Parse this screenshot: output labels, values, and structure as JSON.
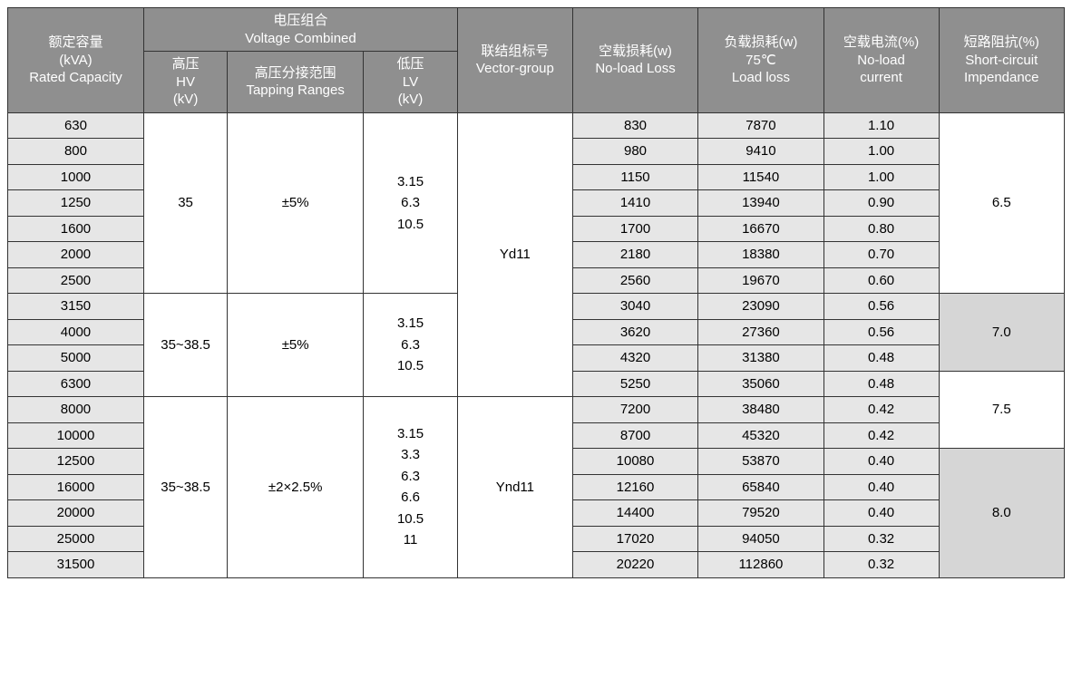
{
  "headers": {
    "rated_capacity_zh": "额定容量",
    "rated_capacity_unit": "(kVA)",
    "rated_capacity_en": "Rated Capacity",
    "voltage_combined_zh": "电压组合",
    "voltage_combined_en": "Voltage Combined",
    "hv_zh": "高压",
    "hv_en": "HV",
    "hv_unit": "(kV)",
    "tapping_zh": "高压分接范围",
    "tapping_en": "Tapping Ranges",
    "lv_zh": "低压",
    "lv_en": "LV",
    "lv_unit": "(kV)",
    "vector_zh": "联结组标号",
    "vector_en": "Vector-group",
    "noload_loss_zh": "空载损耗(w)",
    "noload_loss_en": "No-load Loss",
    "load_loss_zh": "负载损耗(w)",
    "load_loss_temp": "75℃",
    "load_loss_en": "Load loss",
    "noload_current_zh": "空载电流(%)",
    "noload_current_en1": "No-load",
    "noload_current_en2": "current",
    "sc_imp_zh": "短路阻抗(%)",
    "sc_imp_en1": "Short-circuit",
    "sc_imp_en2": "Impendance"
  },
  "group1": {
    "hv": "35",
    "tapping": "±5%",
    "lv": [
      "3.15",
      "6.3",
      "10.5"
    ],
    "vector": "Yd11",
    "impedance": "6.5",
    "rows": [
      {
        "cap": "630",
        "nll": "830",
        "ll": "7870",
        "nlc": "1.10"
      },
      {
        "cap": "800",
        "nll": "980",
        "ll": "9410",
        "nlc": "1.00"
      },
      {
        "cap": "1000",
        "nll": "1150",
        "ll": "11540",
        "nlc": "1.00"
      },
      {
        "cap": "1250",
        "nll": "1410",
        "ll": "13940",
        "nlc": "0.90"
      },
      {
        "cap": "1600",
        "nll": "1700",
        "ll": "16670",
        "nlc": "0.80"
      },
      {
        "cap": "2000",
        "nll": "2180",
        "ll": "18380",
        "nlc": "0.70"
      },
      {
        "cap": "2500",
        "nll": "2560",
        "ll": "19670",
        "nlc": "0.60"
      }
    ]
  },
  "group2": {
    "hv": "35~38.5",
    "tapping": "±5%",
    "lv": [
      "3.15",
      "6.3",
      "10.5"
    ],
    "impedance1": "7.0",
    "impedance2": "7.5",
    "rows": [
      {
        "cap": "3150",
        "nll": "3040",
        "ll": "23090",
        "nlc": "0.56"
      },
      {
        "cap": "4000",
        "nll": "3620",
        "ll": "27360",
        "nlc": "0.56"
      },
      {
        "cap": "5000",
        "nll": "4320",
        "ll": "31380",
        "nlc": "0.48"
      },
      {
        "cap": "6300",
        "nll": "5250",
        "ll": "35060",
        "nlc": "0.48"
      }
    ]
  },
  "group3": {
    "hv": "35~38.5",
    "tapping": "±2×2.5%",
    "lv": [
      "3.15",
      "3.3",
      "6.3",
      "6.6",
      "10.5",
      "11"
    ],
    "vector": "Ynd11",
    "impedance": "8.0",
    "rows": [
      {
        "cap": "8000",
        "nll": "7200",
        "ll": "38480",
        "nlc": "0.42"
      },
      {
        "cap": "10000",
        "nll": "8700",
        "ll": "45320",
        "nlc": "0.42"
      },
      {
        "cap": "12500",
        "nll": "10080",
        "ll": "53870",
        "nlc": "0.40"
      },
      {
        "cap": "16000",
        "nll": "12160",
        "ll": "65840",
        "nlc": "0.40"
      },
      {
        "cap": "20000",
        "nll": "14400",
        "ll": "79520",
        "nlc": "0.40"
      },
      {
        "cap": "25000",
        "nll": "17020",
        "ll": "94050",
        "nlc": "0.32"
      },
      {
        "cap": "31500",
        "nll": "20220",
        "ll": "112860",
        "nlc": "0.32"
      }
    ]
  },
  "col_widths": [
    "13%",
    "8%",
    "13%",
    "9%",
    "11%",
    "12%",
    "12%",
    "11%",
    "12%"
  ]
}
